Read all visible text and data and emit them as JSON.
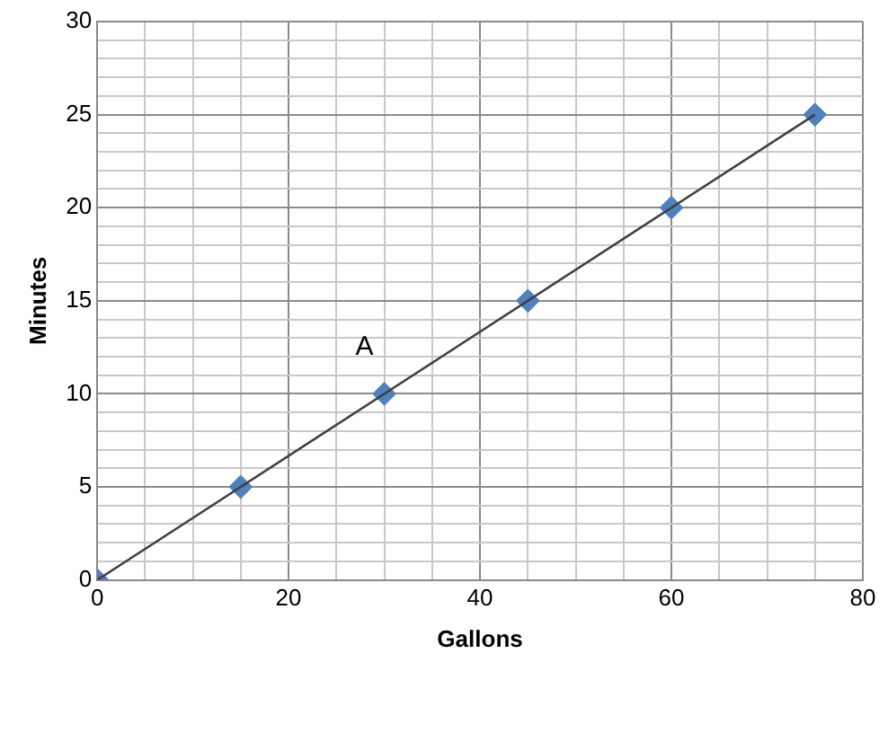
{
  "chart_data": {
    "type": "scatter",
    "xlabel": "Gallons",
    "ylabel": "Minutes",
    "xlim": [
      0,
      80
    ],
    "xticks": [
      0,
      {
        "value": 5,
        "label": null
      },
      {
        "value": 10,
        "label": null
      },
      {
        "value": 15,
        "label": null
      },
      20,
      {
        "value": 25,
        "label": null
      },
      {
        "value": 30,
        "label": null
      },
      {
        "value": 35,
        "label": null
      },
      40,
      {
        "value": 45,
        "label": null
      },
      {
        "value": 50,
        "label": null
      },
      {
        "value": 55,
        "label": null
      },
      60,
      {
        "value": 65,
        "label": null
      },
      {
        "value": 70,
        "label": null
      },
      {
        "value": 75,
        "label": null
      },
      80
    ],
    "ylim": [
      0,
      30
    ],
    "yticks": [
      0,
      {
        "value": 1,
        "label": null
      },
      {
        "value": 2,
        "label": null
      },
      {
        "value": 3,
        "label": null
      },
      {
        "value": 4,
        "label": null
      },
      5,
      {
        "value": 6,
        "label": null
      },
      {
        "value": 7,
        "label": null
      },
      {
        "value": 8,
        "label": null
      },
      {
        "value": 9,
        "label": null
      },
      10,
      {
        "value": 11,
        "label": null
      },
      {
        "value": 12,
        "label": null
      },
      {
        "value": 13,
        "label": null
      },
      {
        "value": 14,
        "label": null
      },
      15,
      {
        "value": 16,
        "label": null
      },
      {
        "value": 17,
        "label": null
      },
      {
        "value": 18,
        "label": null
      },
      {
        "value": 19,
        "label": null
      },
      20,
      {
        "value": 21,
        "label": null
      },
      {
        "value": 22,
        "label": null
      },
      {
        "value": 23,
        "label": null
      },
      {
        "value": 24,
        "label": null
      },
      25,
      {
        "value": 26,
        "label": null
      },
      {
        "value": 27,
        "label": null
      },
      {
        "value": 28,
        "label": null
      },
      {
        "value": 29,
        "label": null
      },
      30
    ],
    "grid": true,
    "legend": false,
    "annotations": [
      {
        "text": "A",
        "x": 30,
        "y": 10
      }
    ],
    "series": [
      {
        "type": "line",
        "color": "#404040",
        "marker": "none",
        "x": [
          0,
          75
        ],
        "values": [
          0,
          25
        ]
      },
      {
        "color": "#4f81bd",
        "marker": "diamond",
        "x": [
          0,
          15,
          30,
          45,
          60,
          75
        ],
        "values": [
          0,
          5,
          10,
          15,
          20,
          25
        ]
      }
    ]
  }
}
